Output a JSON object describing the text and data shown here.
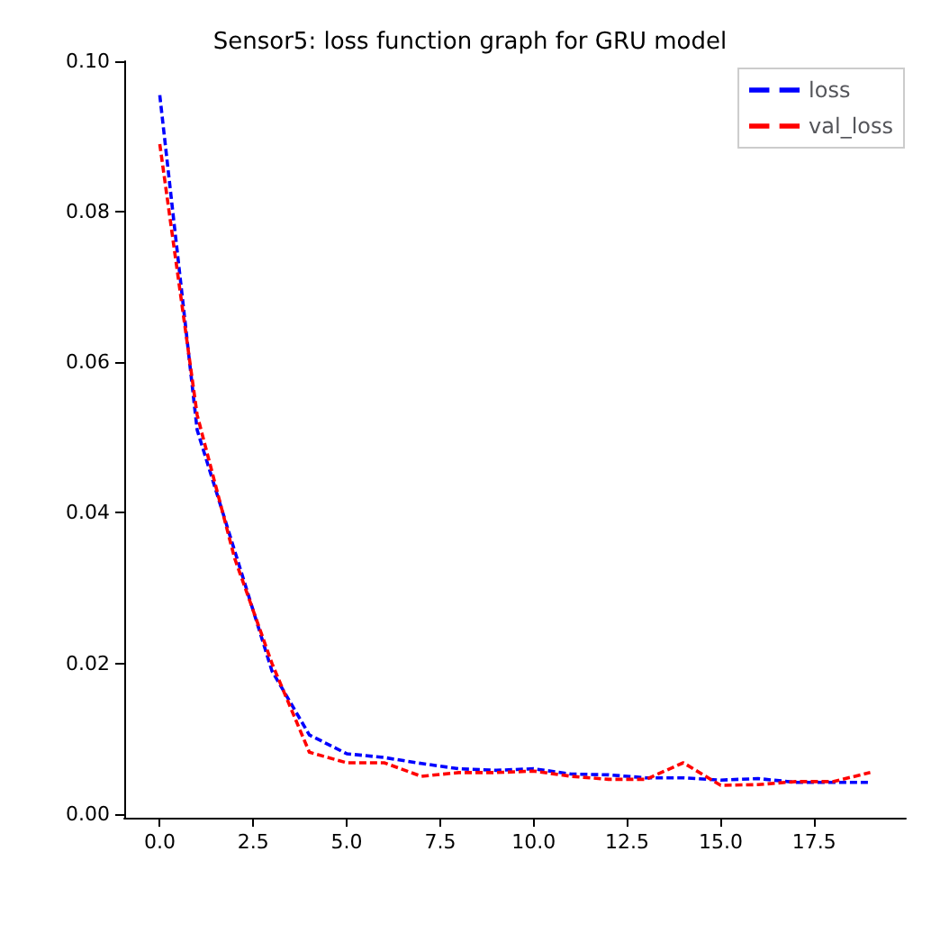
{
  "chart_data": {
    "type": "line",
    "title": "Sensor5: loss function graph for GRU model",
    "x": [
      0,
      1,
      2,
      3,
      4,
      5,
      6,
      7,
      8,
      9,
      10,
      11,
      12,
      13,
      14,
      15,
      16,
      17,
      18,
      19
    ],
    "series": [
      {
        "name": "loss",
        "color": "#0000ff",
        "values": [
          0.0955,
          0.051,
          0.035,
          0.019,
          0.0105,
          0.008,
          0.0075,
          0.0067,
          0.006,
          0.0058,
          0.006,
          0.0053,
          0.0052,
          0.0048,
          0.0048,
          0.0045,
          0.0047,
          0.0042,
          0.0042,
          0.0042
        ]
      },
      {
        "name": "val_loss",
        "color": "#ff0000",
        "values": [
          0.089,
          0.053,
          0.034,
          0.02,
          0.0082,
          0.0068,
          0.0068,
          0.005,
          0.0055,
          0.0055,
          0.0057,
          0.005,
          0.0046,
          0.0046,
          0.0068,
          0.0038,
          0.0039,
          0.0043,
          0.0043,
          0.0055
        ]
      }
    ],
    "xlim": [
      -0.95,
      19.95
    ],
    "xticks": [
      {
        "value": 0,
        "label": "0.0"
      },
      {
        "value": 2.5,
        "label": "2.5"
      },
      {
        "value": 5,
        "label": "5.0"
      },
      {
        "value": 7.5,
        "label": "7.5"
      },
      {
        "value": 10,
        "label": "10.0"
      },
      {
        "value": 12.5,
        "label": "12.5"
      },
      {
        "value": 15,
        "label": "15.0"
      },
      {
        "value": 17.5,
        "label": "17.5"
      }
    ],
    "ylim": [
      -0.0005,
      0.1
    ],
    "yticks": [
      {
        "value": 0,
        "label": "0.00"
      },
      {
        "value": 0.02,
        "label": "0.02"
      },
      {
        "value": 0.04,
        "label": "0.04"
      },
      {
        "value": 0.06,
        "label": "0.06"
      },
      {
        "value": 0.08,
        "label": "0.08"
      },
      {
        "value": 0.1,
        "label": "0.10"
      }
    ],
    "legend": "top right",
    "line_style": "dashed",
    "marker": "none",
    "grid": false
  }
}
